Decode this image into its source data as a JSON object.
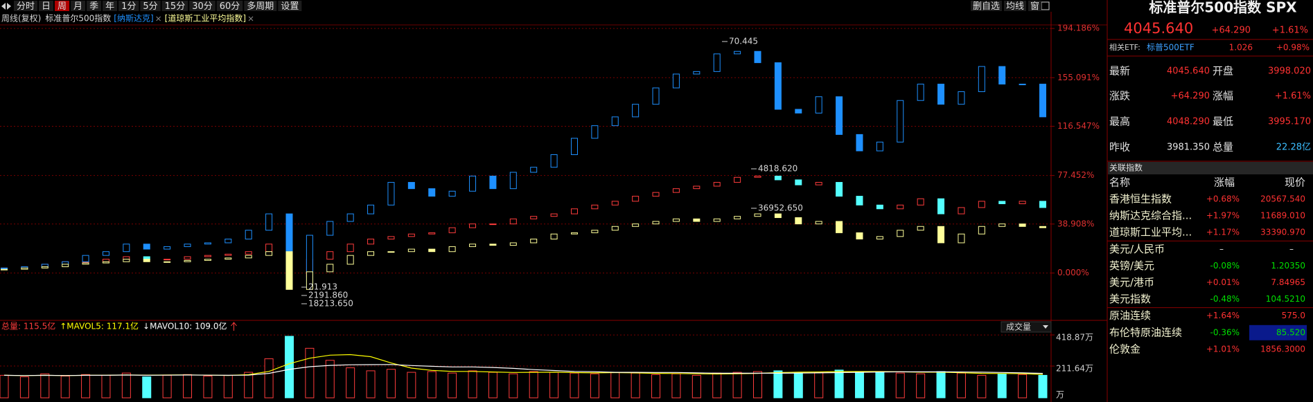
{
  "toolbar": {
    "periods": [
      "分时",
      "日",
      "周",
      "月",
      "季",
      "年",
      "1分",
      "5分",
      "15分",
      "30分",
      "60分",
      "多周期",
      "设置"
    ],
    "active": "周",
    "actions": [
      "删自选",
      "均线",
      "窗"
    ]
  },
  "mode": "周线(复权)",
  "chart_data": [
    {
      "type": "candlestick",
      "series": [
        {
          "name": "标准普尔500指数",
          "color": "#ff3c3c",
          "down_color": "#54ffff",
          "values": [
            4,
            5,
            7,
            9,
            9,
            11,
            13,
            11,
            11,
            13,
            14,
            15,
            17,
            23,
            -3,
            11,
            17,
            23,
            27,
            29,
            31,
            32,
            36,
            39,
            39,
            43,
            45,
            47,
            51,
            54,
            57,
            61,
            64,
            67,
            69,
            72,
            76,
            77,
            74,
            70,
            72,
            61,
            54,
            51,
            54,
            59,
            47,
            52,
            57,
            55,
            57,
            52
          ]
        },
        {
          "name": "[纳斯达克]",
          "color": "#1e90ff",
          "down_color": "#1e90ff",
          "values": [
            4,
            5,
            7,
            9,
            14,
            17,
            23,
            19,
            21,
            23,
            24,
            27,
            34,
            47,
            -10,
            30,
            41,
            47,
            54,
            72,
            67,
            61,
            65,
            77,
            67,
            80,
            84,
            94,
            107,
            117,
            124,
            134,
            147,
            158,
            160,
            174,
            176,
            167,
            130,
            127,
            140,
            110,
            97,
            104,
            137,
            150,
            134,
            144,
            164,
            150,
            150,
            124
          ]
        },
        {
          "name": "[道琼斯工业平均指数]",
          "color": "#ffff99",
          "down_color": "#ffff99",
          "values": [
            3,
            4,
            5,
            7,
            8,
            9,
            11,
            9,
            9,
            10,
            11,
            12,
            14,
            17,
            -13,
            1,
            7,
            14,
            17,
            17,
            19,
            17,
            21,
            23,
            22,
            24,
            27,
            31,
            32,
            34,
            37,
            39,
            41,
            43,
            41,
            43,
            45,
            47,
            44,
            39,
            41,
            32,
            27,
            29,
            34,
            37,
            24,
            31,
            37,
            39,
            37,
            36
          ]
        }
      ],
      "hollow_up": true,
      "ylim": [
        -37,
        197
      ],
      "yticks": [
        {
          "value": 0,
          "label": "0.000%"
        },
        {
          "value": 38.908,
          "label": "38.908%"
        },
        {
          "value": 77.452,
          "label": "77.452%"
        },
        {
          "value": 116.547,
          "label": "116.547%"
        },
        {
          "value": 155.091,
          "label": "155.091%"
        },
        {
          "value": 194.186,
          "label": "194.186%"
        }
      ],
      "grid": true,
      "annotations": [
        "70.445",
        "4818.620",
        "36952.650",
        "21.913",
        "2191.860",
        "18213.650"
      ]
    },
    {
      "type": "bar",
      "series": [
        {
          "name": "总量: 115.5亿",
          "color": "#ff3c3c",
          "down_color": "#54ffff",
          "values": [
            150,
            140,
            160,
            145,
            155,
            150,
            165,
            140,
            150,
            155,
            145,
            150,
            170,
            260,
            410,
            330,
            250,
            200,
            180,
            190,
            170,
            175,
            165,
            180,
            170,
            160,
            175,
            170,
            165,
            160,
            170,
            165,
            155,
            160,
            150,
            165,
            170,
            175,
            180,
            165,
            170,
            185,
            175,
            170,
            165,
            160,
            175,
            165,
            150,
            160,
            155,
            150
          ]
        },
        {
          "name": "↑MAVOL5: 117.1亿",
          "color": "#ffff00",
          "values": [
            150,
            148,
            150,
            148,
            150,
            150,
            153,
            151,
            152,
            153,
            151,
            149,
            154,
            176,
            227,
            264,
            284,
            288,
            274,
            232,
            198,
            183,
            176,
            176,
            172,
            169,
            170,
            171,
            168,
            166,
            168,
            166,
            163,
            162,
            160,
            159,
            160,
            163,
            168,
            171,
            172,
            175,
            175,
            175,
            173,
            171,
            171,
            167,
            163,
            162,
            161,
            156
          ]
        },
        {
          "name": "↓MAVOL10: 109.0亿",
          "color": "#ffffff",
          "values": [
            150,
            148,
            150,
            148,
            150,
            150,
            152,
            150,
            151,
            152,
            151,
            150,
            151,
            163,
            189,
            207,
            216,
            220,
            221,
            222,
            215,
            210,
            206,
            206,
            202,
            196,
            188,
            182,
            176,
            174,
            170,
            170,
            169,
            169,
            166,
            164,
            164,
            164,
            164,
            165,
            166,
            168,
            170,
            172,
            173,
            173,
            173,
            172,
            171,
            169,
            166,
            163
          ]
        }
      ],
      "ylim": [
        -14,
        433
      ],
      "yticks": [
        {
          "value": 418.87,
          "label": "418.87万"
        },
        {
          "value": 211.64,
          "label": "211.64万"
        }
      ],
      "unit": "万",
      "selector": "成交量"
    }
  ],
  "quote": {
    "title": "标准普尔500指数 SPX",
    "price": "4045.640",
    "change": "+64.290",
    "change_pct": "+1.61%",
    "etf": {
      "label": "相关ETF:",
      "name": "标普500ETF",
      "price": "1.026",
      "change": "+0.98%"
    },
    "fields": [
      [
        "最新",
        "4045.640",
        "开盘",
        "3998.020"
      ],
      [
        "涨跌",
        "+64.290",
        "涨幅",
        "+1.61%"
      ],
      [
        "最高",
        "4048.290",
        "最低",
        "3995.170"
      ],
      [
        "昨收",
        "3981.350",
        "总量",
        "22.28亿"
      ]
    ]
  },
  "related": {
    "title": "关联指数",
    "header": [
      "名称",
      "涨幅",
      "现价"
    ],
    "rows": [
      [
        "香港恒生指数",
        "+0.68%",
        "20567.540"
      ],
      [
        "纳斯达克综合指...",
        "+1.97%",
        "11689.010"
      ],
      [
        "道琼斯工业平均...",
        "+1.17%",
        "33390.970"
      ],
      [
        "美元/人民币",
        "–",
        "–"
      ],
      [
        "英镑/美元",
        "-0.08%",
        "1.20350"
      ],
      [
        "美元/港币",
        "+0.01%",
        "7.84965"
      ],
      [
        "美元指数",
        "-0.48%",
        "104.5210"
      ],
      [
        "原油连续",
        "+1.64%",
        "575.0"
      ],
      [
        "布伦特原油连续",
        "-0.36%",
        "85.520"
      ],
      [
        "伦敦金",
        "+1.01%",
        "1856.3000"
      ]
    ]
  }
}
